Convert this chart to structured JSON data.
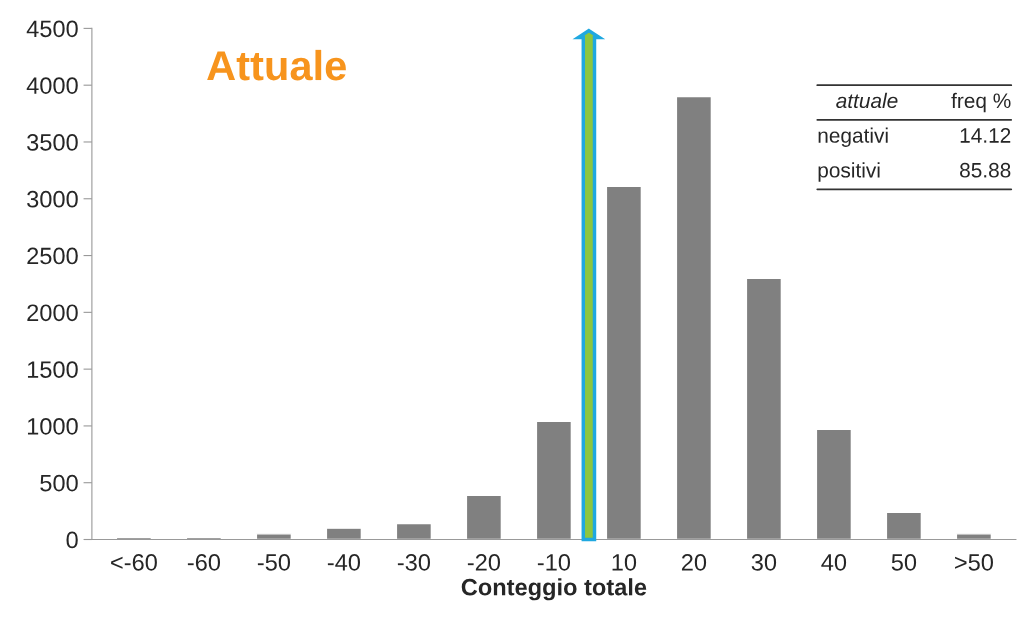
{
  "chart_data": {
    "type": "bar",
    "title": "Attuale",
    "xlabel": "Conteggio totale",
    "categories": [
      "<-60",
      "-60",
      "-50",
      "-40",
      "-30",
      "-20",
      "-10",
      "10",
      "20",
      "30",
      "40",
      "50",
      ">50"
    ],
    "values": [
      20,
      20,
      50,
      100,
      140,
      390,
      1040,
      3110,
      3900,
      2300,
      970,
      240,
      50
    ],
    "color": "#808080",
    "ylim": [
      0,
      4500
    ],
    "yticks": [
      0,
      500,
      1000,
      1500,
      2000,
      2500,
      3000,
      3500,
      4000,
      4500
    ],
    "annotations": [
      "attuale",
      "freq %",
      "negativi",
      "14.12",
      "positivi",
      "85.88"
    ],
    "grid": false
  }
}
